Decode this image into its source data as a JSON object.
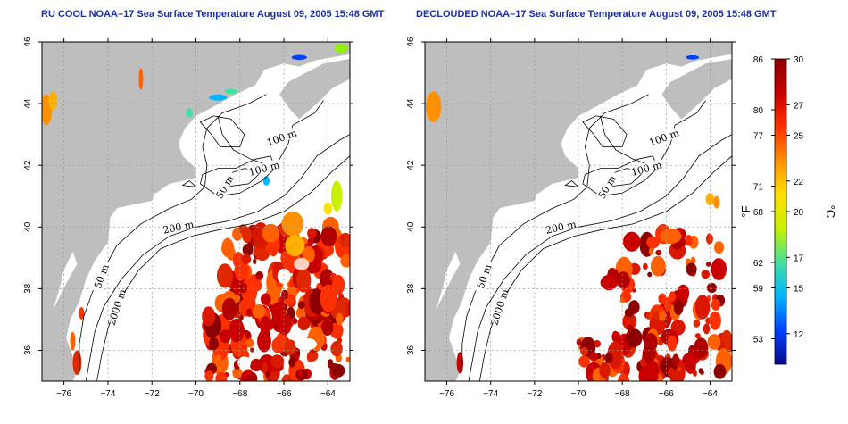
{
  "panels": [
    {
      "id": "rucool",
      "title": "RU COOL NOAA–17 Sea Surface Temperature August 09, 2005 15:48 GMT"
    },
    {
      "id": "decloud",
      "title": "DECLOUDED NOAA–17 Sea Surface Temperature August 09, 2005 15:48 GMT"
    }
  ],
  "axes": {
    "lon_ticks": [
      "−76",
      "−74",
      "−72",
      "−70",
      "−68",
      "−66",
      "−64"
    ],
    "lat_ticks": [
      "36",
      "38",
      "40",
      "42",
      "44",
      "46"
    ],
    "lon_values": [
      -76,
      -74,
      -72,
      -70,
      -68,
      -66,
      -64
    ],
    "lat_values": [
      36,
      38,
      40,
      42,
      44,
      46
    ],
    "lon_range": [
      -77,
      -63
    ],
    "lat_range": [
      35,
      46
    ]
  },
  "contour_labels": [
    {
      "text": "100 m",
      "lon": -66.1,
      "lat": 42.9,
      "angle": -20
    },
    {
      "text": "100 m",
      "lon": -66.9,
      "lat": 41.9,
      "angle": -15
    },
    {
      "text": "50 m",
      "lon": -68.7,
      "lat": 41.3,
      "angle": -60
    },
    {
      "text": "200 m",
      "lon": -70.8,
      "lat": 40.0,
      "angle": -12
    },
    {
      "text": "50 m",
      "lon": -74.3,
      "lat": 38.4,
      "angle": -70
    },
    {
      "text": "2000 m",
      "lon": -73.6,
      "lat": 37.4,
      "angle": -72
    }
  ],
  "colorbar": {
    "fahrenheit_ticks": [
      "86",
      "80",
      "77",
      "71",
      "68",
      "62",
      "59",
      "53"
    ],
    "fahrenheit_values": [
      86,
      80,
      77,
      71,
      68,
      62,
      59,
      53
    ],
    "celsius_ticks": [
      "30",
      "27",
      "25",
      "22",
      "20",
      "17",
      "15",
      "12"
    ],
    "celsius_values": [
      30,
      27,
      25,
      22,
      20,
      17,
      15,
      12
    ],
    "celsius_range": [
      10,
      30
    ],
    "unit_f": "°F",
    "unit_c": "°C",
    "colors": [
      "#0a0a8c",
      "#0040ff",
      "#00b4ff",
      "#40e0a0",
      "#c8f000",
      "#ffe000",
      "#ff9000",
      "#ff3000",
      "#c80000",
      "#8c0000"
    ]
  },
  "colors": {
    "land": "#bebebe",
    "ocean": "#ffffff",
    "contour": "#000000",
    "grid": "#9a9a9a",
    "title": "#1b2fa8"
  }
}
